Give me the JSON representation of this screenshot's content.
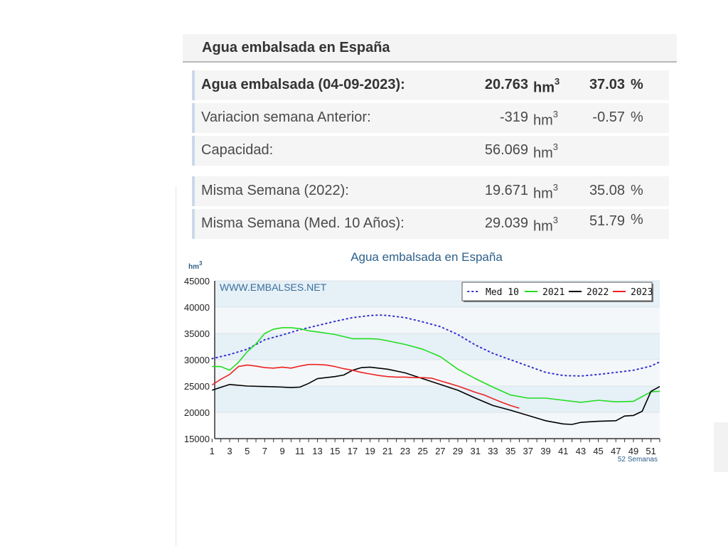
{
  "panel": {
    "title": "Agua embalsada en España"
  },
  "rows": [
    {
      "label": "Agua embalsada (04-09-2023):",
      "value": "20.763",
      "unit": "hm",
      "unit_sup": "3",
      "pct": "37.03",
      "pct_sign": "%",
      "bold": true
    },
    {
      "label": "Variacion semana Anterior:",
      "value": "-319",
      "unit": "hm",
      "unit_sup": "3",
      "pct": "-0.57",
      "pct_sign": "%",
      "bold": false
    },
    {
      "label": "Capacidad:",
      "value": "56.069",
      "unit": "hm",
      "unit_sup": "3",
      "pct": "",
      "pct_sign": "",
      "bold": false
    },
    {
      "label": "Misma Semana (2022):",
      "value": "19.671",
      "unit": "hm",
      "unit_sup": "3",
      "pct": "35.08",
      "pct_sign": "%",
      "bold": false
    },
    {
      "label": "Misma Semana (Med. 10 Años):",
      "value": "29.039",
      "unit": "hm",
      "unit_sup": "3",
      "pct": "51.79",
      "pct_sign": "%",
      "bold": false
    }
  ],
  "chart_data": {
    "type": "line",
    "title": "Agua embalsada en España",
    "ylabel": "hm",
    "ylabel_sup": "3",
    "xlabel": "52 Semanas",
    "watermark": "WWW.EMBALSES.NET",
    "ylim": [
      15000,
      45000
    ],
    "yticks": [
      15000,
      20000,
      25000,
      30000,
      35000,
      40000,
      45000
    ],
    "xlim": [
      1,
      52
    ],
    "xticks": [
      1,
      3,
      5,
      7,
      9,
      11,
      13,
      15,
      17,
      19,
      21,
      23,
      25,
      27,
      29,
      31,
      33,
      35,
      37,
      39,
      41,
      43,
      45,
      47,
      49,
      51
    ],
    "legend_position": "top-right",
    "grid": true,
    "series": [
      {
        "name": "Med 10",
        "color": "#3333cc",
        "style": "dotted",
        "x": [
          1,
          3,
          5,
          7,
          9,
          11,
          13,
          15,
          17,
          19,
          20,
          21,
          23,
          25,
          27,
          29,
          31,
          33,
          35,
          37,
          39,
          41,
          43,
          45,
          47,
          49,
          51,
          52
        ],
        "y": [
          30200,
          31000,
          32000,
          33800,
          34700,
          35700,
          36500,
          37300,
          38000,
          38400,
          38500,
          38400,
          38000,
          37200,
          36300,
          34800,
          32800,
          31200,
          30000,
          28800,
          27600,
          27000,
          26900,
          27200,
          27600,
          28000,
          28800,
          29600
        ]
      },
      {
        "name": "2021",
        "color": "#22dd22",
        "style": "solid",
        "x": [
          1,
          2,
          3,
          4,
          5,
          6,
          7,
          8,
          9,
          10,
          11,
          12,
          13,
          15,
          17,
          19,
          20,
          21,
          23,
          25,
          27,
          29,
          31,
          33,
          35,
          37,
          39,
          41,
          43,
          45,
          47,
          49,
          51,
          52
        ],
        "y": [
          28700,
          28700,
          28000,
          29500,
          31500,
          33000,
          35000,
          35800,
          36100,
          36100,
          35900,
          35500,
          35300,
          34800,
          34000,
          34000,
          33900,
          33600,
          32900,
          32000,
          30600,
          28200,
          26400,
          24800,
          23300,
          22700,
          22700,
          22300,
          21900,
          22300,
          22000,
          22100,
          23900,
          24000
        ]
      },
      {
        "name": "2022",
        "color": "#000000",
        "style": "solid",
        "x": [
          1,
          3,
          5,
          7,
          9,
          10,
          11,
          12,
          13,
          15,
          16,
          17,
          18,
          19,
          21,
          23,
          25,
          27,
          29,
          31,
          33,
          35,
          37,
          39,
          41,
          42,
          43,
          45,
          47,
          48,
          49,
          50,
          51,
          52
        ],
        "y": [
          24200,
          25300,
          25000,
          24900,
          24800,
          24700,
          24800,
          25500,
          26400,
          26800,
          27100,
          28000,
          28500,
          28600,
          28200,
          27500,
          26400,
          25300,
          24200,
          22700,
          21300,
          20400,
          19400,
          18400,
          17800,
          17700,
          18100,
          18300,
          18400,
          19300,
          19400,
          20200,
          24000,
          24900
        ]
      },
      {
        "name": "2023",
        "color": "#ee2222",
        "style": "solid",
        "x": [
          1,
          2,
          3,
          4,
          5,
          6,
          7,
          8,
          9,
          10,
          11,
          12,
          13,
          14,
          15,
          16,
          17,
          18,
          19,
          20,
          21,
          22,
          23,
          24,
          25,
          26,
          27,
          28,
          29,
          30,
          31,
          32,
          33,
          34,
          35,
          36
        ],
        "y": [
          25200,
          26300,
          27200,
          28700,
          29000,
          28800,
          28500,
          28400,
          28600,
          28400,
          28800,
          29100,
          29100,
          29000,
          28700,
          28300,
          28000,
          27600,
          27300,
          27000,
          26800,
          26700,
          26700,
          26600,
          26600,
          26500,
          26000,
          25500,
          25000,
          24400,
          23800,
          23300,
          22600,
          21900,
          21300,
          20800
        ]
      }
    ]
  }
}
